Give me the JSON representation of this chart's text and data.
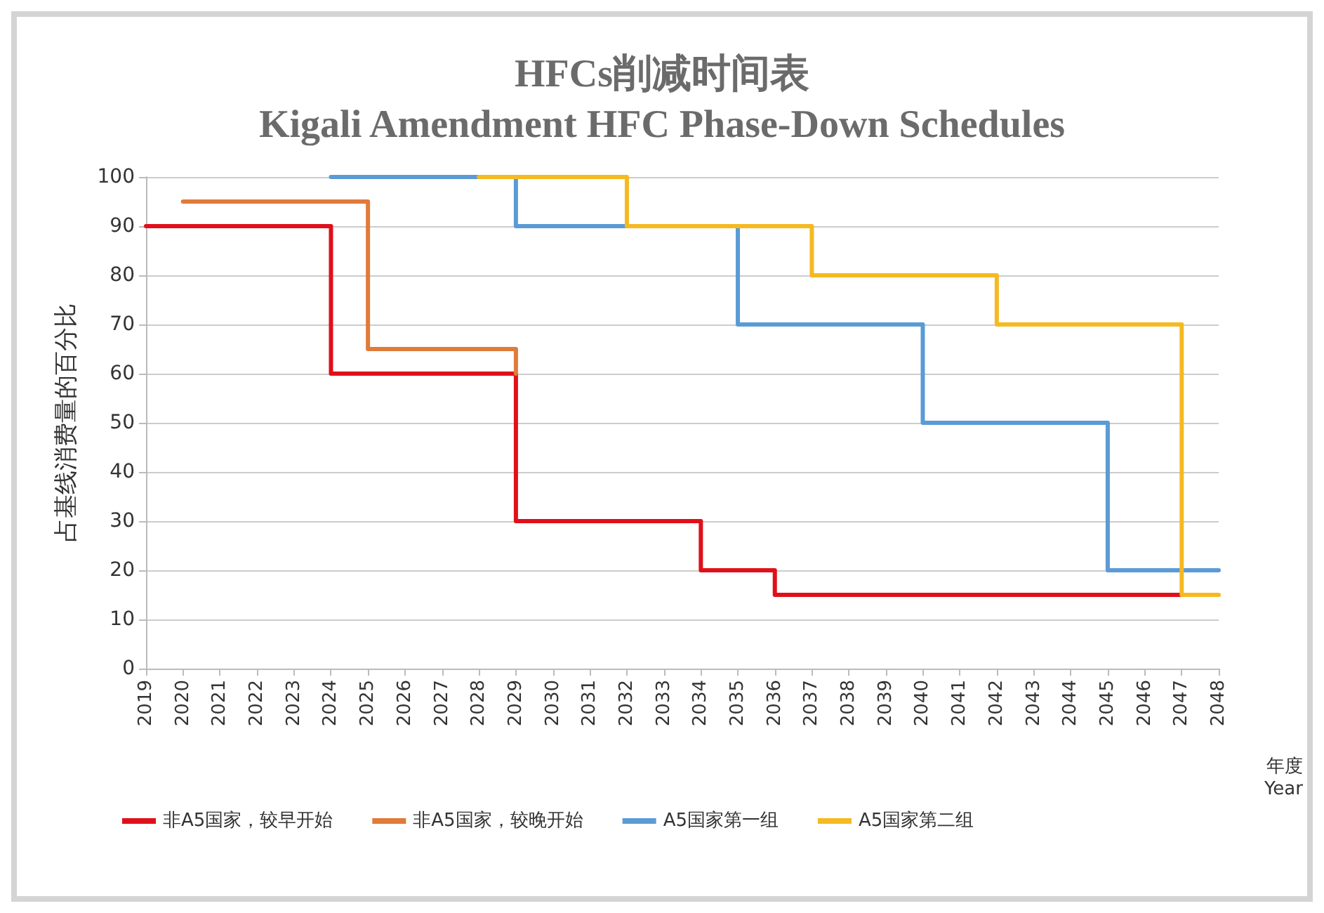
{
  "chart_data": {
    "type": "step",
    "title": "HFCs削减时间表",
    "subtitle": "Kigali Amendment HFC Phase-Down Schedules",
    "xlabel": "年度\nYear",
    "ylabel": "占基线消费量的百分比",
    "categories": [
      "2019",
      "2020",
      "2021",
      "2022",
      "2023",
      "2024",
      "2025",
      "2026",
      "2027",
      "2028",
      "2029",
      "2030",
      "2031",
      "2032",
      "2033",
      "2034",
      "2035",
      "2036",
      "2037",
      "2038",
      "2039",
      "2040",
      "2041",
      "2042",
      "2043",
      "2044",
      "2045",
      "2046",
      "2047",
      "2048"
    ],
    "series": [
      {
        "name": "非A5国家，较早开始",
        "color": "#e0101a",
        "values": [
          90,
          90,
          90,
          90,
          90,
          60,
          60,
          60,
          60,
          60,
          30,
          30,
          30,
          30,
          30,
          20,
          20,
          15,
          15,
          15,
          15,
          15,
          15,
          15,
          15,
          15,
          15,
          15,
          15,
          null
        ]
      },
      {
        "name": "非A5国家，较晚开始",
        "color": "#e07b39",
        "values": [
          null,
          95,
          95,
          95,
          95,
          95,
          65,
          65,
          65,
          65,
          60,
          null,
          null,
          null,
          null,
          null,
          null,
          null,
          null,
          null,
          null,
          null,
          null,
          null,
          null,
          null,
          null,
          null,
          null,
          null
        ]
      },
      {
        "name": "A5国家第一组",
        "color": "#5b9bd5",
        "values": [
          null,
          null,
          null,
          null,
          null,
          100,
          100,
          100,
          100,
          100,
          90,
          90,
          90,
          90,
          90,
          90,
          70,
          70,
          70,
          70,
          70,
          50,
          50,
          50,
          50,
          50,
          20,
          20,
          20,
          20
        ]
      },
      {
        "name": "A5国家第二组",
        "color": "#f5b921",
        "values": [
          null,
          null,
          null,
          null,
          null,
          null,
          null,
          null,
          null,
          100,
          100,
          100,
          100,
          90,
          90,
          90,
          90,
          90,
          80,
          80,
          80,
          80,
          80,
          70,
          70,
          70,
          70,
          70,
          15,
          15
        ]
      }
    ],
    "ylim": [
      0,
      100
    ],
    "yticks": [
      0,
      10,
      20,
      30,
      40,
      50,
      60,
      70,
      80,
      90,
      100
    ],
    "grid": "y",
    "legend": "bottom left",
    "marker": "none",
    "line_style": "solid"
  }
}
